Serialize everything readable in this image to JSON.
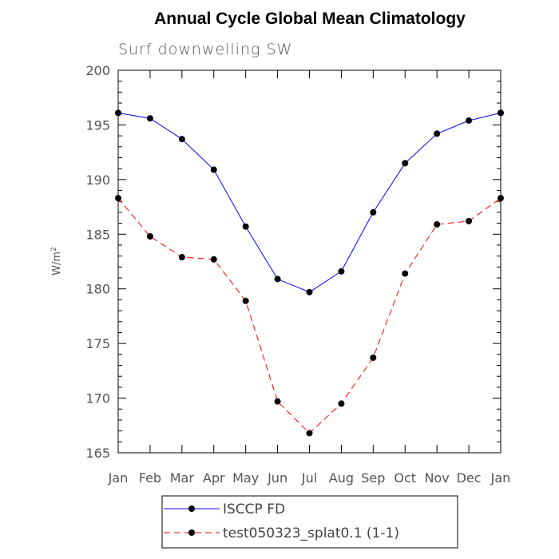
{
  "chart_data": {
    "type": "line",
    "title": "Annual Cycle Global Mean Climatology",
    "subtitle": "Surf downwelling SW",
    "ylabel": "W/m",
    "ylabel_superscript": "2",
    "xlabel": "",
    "categories": [
      "Jan",
      "Feb",
      "Mar",
      "Apr",
      "May",
      "Jun",
      "Jul",
      "Aug",
      "Sep",
      "Oct",
      "Nov",
      "Dec",
      "Jan"
    ],
    "ylim": [
      165,
      200
    ],
    "yticks": [
      165,
      170,
      175,
      180,
      185,
      190,
      195,
      200
    ],
    "y_minor_step": 1,
    "grid": false,
    "legend_position": "bottom",
    "series": [
      {
        "name": "ISCCP FD",
        "color": "#0000ff",
        "dash": "solid",
        "marker": "circle",
        "values": [
          196.1,
          195.6,
          193.7,
          190.9,
          185.7,
          180.9,
          179.7,
          181.6,
          187.0,
          191.5,
          194.2,
          195.4,
          196.1
        ]
      },
      {
        "name": "test050323_splat0.1 (1-1)",
        "color": "#ff0000",
        "dash": "dashed",
        "marker": "circle",
        "values": [
          188.3,
          184.8,
          182.9,
          182.7,
          178.9,
          169.7,
          166.8,
          169.5,
          173.7,
          181.4,
          185.9,
          186.2,
          188.3
        ]
      }
    ]
  }
}
